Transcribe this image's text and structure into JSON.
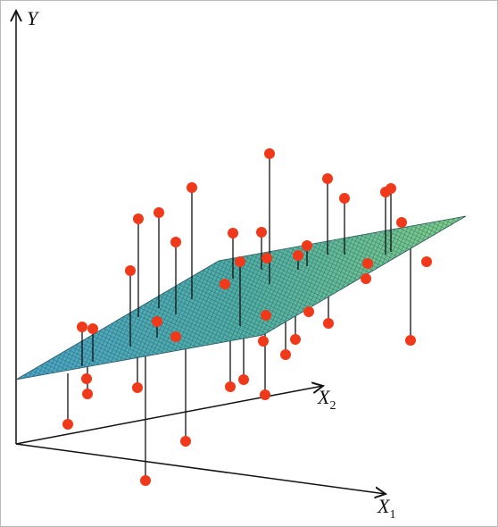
{
  "labels": {
    "y": "Y",
    "x1": {
      "base": "X",
      "subscript": "1"
    },
    "x2": {
      "base": "X",
      "subscript": "2"
    }
  }
}
